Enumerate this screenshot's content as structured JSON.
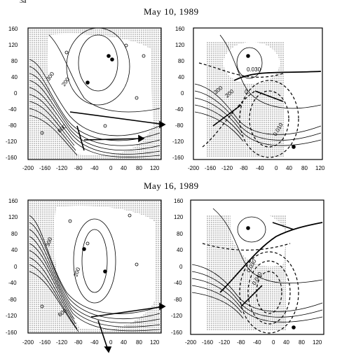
{
  "corner_text": "3a",
  "figure": {
    "dates": [
      "May 10, 1989",
      "May 16, 1989"
    ],
    "x_tick_labels": [
      "-200",
      "-160",
      "-120",
      "-80",
      "-40",
      "0",
      "40",
      "80",
      "120"
    ],
    "y_tick_labels": [
      "160",
      "120",
      "80",
      "40",
      "0",
      "-40",
      "-80",
      "-120",
      "-160"
    ],
    "contour_labels_left": [
      "300",
      "200",
      "600"
    ],
    "contour_labels_right_top": [
      "0.030",
      "300",
      "200",
      "0.",
      "0.010"
    ],
    "contour_labels_right_bottom": [
      "0.030",
      "0.040"
    ]
  },
  "colors": {
    "ink": "#000000",
    "stipple": "#9a9a9a",
    "background": "#ffffff"
  }
}
